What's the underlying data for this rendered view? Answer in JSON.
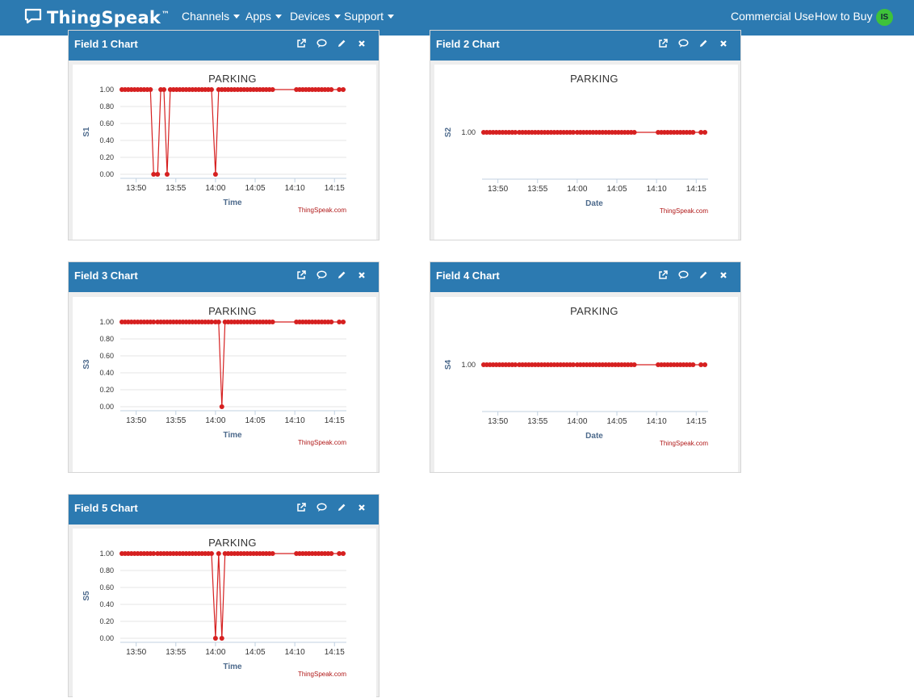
{
  "navbar": {
    "brand": "ThingSpeak",
    "brand_tm": "™",
    "menus": [
      {
        "label": "Channels"
      },
      {
        "label": "Apps"
      },
      {
        "label": "Devices"
      },
      {
        "label": "Support"
      }
    ],
    "commercial_use": "Commercial Use",
    "how_to_buy": "How to Buy",
    "avatar_initials": "IS"
  },
  "panels": [
    {
      "title": "Field 1 Chart"
    },
    {
      "title": "Field 2 Chart"
    },
    {
      "title": "Field 3 Chart"
    },
    {
      "title": "Field 4 Chart"
    },
    {
      "title": "Field 5 Chart"
    }
  ],
  "chart_data": [
    {
      "type": "line",
      "title": "PARKING",
      "xlabel": "Time",
      "ylabel": "S1",
      "credit": "ThingSpeak.com",
      "color": "#d62020",
      "x_ticks": [
        "13:50",
        "13:55",
        "14:00",
        "14:05",
        "14:10",
        "14:15"
      ],
      "y_ticks": [
        "1.00",
        "0.80",
        "0.60",
        "0.40",
        "0.20",
        "0.00"
      ],
      "xlim": [
        48,
        76.5
      ],
      "ylim": [
        0,
        1
      ],
      "x": [
        48.2,
        48.6,
        49.0,
        49.4,
        49.8,
        50.2,
        50.6,
        51.0,
        51.4,
        51.8,
        52.2,
        52.7,
        53.1,
        53.5,
        53.9,
        54.3,
        54.7,
        55.1,
        55.5,
        55.9,
        56.3,
        56.7,
        57.1,
        57.5,
        57.9,
        58.3,
        58.7,
        59.1,
        59.5,
        60.0,
        60.4,
        60.8,
        61.2,
        61.6,
        62.0,
        62.4,
        62.8,
        63.2,
        63.6,
        64.0,
        64.4,
        64.8,
        65.2,
        65.6,
        66.0,
        66.4,
        66.8,
        67.2,
        70.2,
        70.6,
        71.0,
        71.4,
        71.8,
        72.2,
        72.6,
        73.0,
        73.4,
        73.8,
        74.2,
        74.6,
        75.6,
        76.1
      ],
      "values": [
        1,
        1,
        1,
        1,
        1,
        1,
        1,
        1,
        1,
        1,
        0,
        0,
        1,
        1,
        0,
        1,
        1,
        1,
        1,
        1,
        1,
        1,
        1,
        1,
        1,
        1,
        1,
        1,
        1,
        0,
        1,
        1,
        1,
        1,
        1,
        1,
        1,
        1,
        1,
        1,
        1,
        1,
        1,
        1,
        1,
        1,
        1,
        1,
        1,
        1,
        1,
        1,
        1,
        1,
        1,
        1,
        1,
        1,
        1,
        1,
        1,
        1
      ]
    },
    {
      "type": "line",
      "title": "PARKING",
      "xlabel": "Date",
      "ylabel": "S2",
      "credit": "ThingSpeak.com",
      "color": "#d62020",
      "x_ticks": [
        "13:50",
        "13:55",
        "14:00",
        "14:05",
        "14:10",
        "14:15"
      ],
      "y_ticks": [
        "1.00"
      ],
      "xlim": [
        48,
        76.5
      ],
      "ylim": [
        0,
        1
      ],
      "x": [
        48.2,
        48.6,
        49.0,
        49.4,
        49.8,
        50.2,
        50.6,
        51.0,
        51.4,
        51.8,
        52.2,
        52.7,
        53.1,
        53.5,
        53.9,
        54.3,
        54.7,
        55.1,
        55.5,
        55.9,
        56.3,
        56.7,
        57.1,
        57.5,
        57.9,
        58.3,
        58.7,
        59.1,
        59.5,
        60.0,
        60.4,
        60.8,
        61.2,
        61.6,
        62.0,
        62.4,
        62.8,
        63.2,
        63.6,
        64.0,
        64.4,
        64.8,
        65.2,
        65.6,
        66.0,
        66.4,
        66.8,
        67.2,
        70.2,
        70.6,
        71.0,
        71.4,
        71.8,
        72.2,
        72.6,
        73.0,
        73.4,
        73.8,
        74.2,
        74.6,
        75.6,
        76.1
      ],
      "values": [
        1,
        1,
        1,
        1,
        1,
        1,
        1,
        1,
        1,
        1,
        1,
        1,
        1,
        1,
        1,
        1,
        1,
        1,
        1,
        1,
        1,
        1,
        1,
        1,
        1,
        1,
        1,
        1,
        1,
        1,
        1,
        1,
        1,
        1,
        1,
        1,
        1,
        1,
        1,
        1,
        1,
        1,
        1,
        1,
        1,
        1,
        1,
        1,
        1,
        1,
        1,
        1,
        1,
        1,
        1,
        1,
        1,
        1,
        1,
        1,
        1,
        1
      ]
    },
    {
      "type": "line",
      "title": "PARKING",
      "xlabel": "Time",
      "ylabel": "S3",
      "credit": "ThingSpeak.com",
      "color": "#d62020",
      "x_ticks": [
        "13:50",
        "13:55",
        "14:00",
        "14:05",
        "14:10",
        "14:15"
      ],
      "y_ticks": [
        "1.00",
        "0.80",
        "0.60",
        "0.40",
        "0.20",
        "0.00"
      ],
      "xlim": [
        48,
        76.5
      ],
      "ylim": [
        0,
        1
      ],
      "x": [
        48.2,
        48.6,
        49.0,
        49.4,
        49.8,
        50.2,
        50.6,
        51.0,
        51.4,
        51.8,
        52.2,
        52.7,
        53.1,
        53.5,
        53.9,
        54.3,
        54.7,
        55.1,
        55.5,
        55.9,
        56.3,
        56.7,
        57.1,
        57.5,
        57.9,
        58.3,
        58.7,
        59.1,
        59.5,
        60.0,
        60.4,
        60.8,
        61.2,
        61.6,
        62.0,
        62.4,
        62.8,
        63.2,
        63.6,
        64.0,
        64.4,
        64.8,
        65.2,
        65.6,
        66.0,
        66.4,
        66.8,
        67.2,
        70.2,
        70.6,
        71.0,
        71.4,
        71.8,
        72.2,
        72.6,
        73.0,
        73.4,
        73.8,
        74.2,
        74.6,
        75.6,
        76.1
      ],
      "values": [
        1,
        1,
        1,
        1,
        1,
        1,
        1,
        1,
        1,
        1,
        1,
        1,
        1,
        1,
        1,
        1,
        1,
        1,
        1,
        1,
        1,
        1,
        1,
        1,
        1,
        1,
        1,
        1,
        1,
        1,
        1,
        0,
        1,
        1,
        1,
        1,
        1,
        1,
        1,
        1,
        1,
        1,
        1,
        1,
        1,
        1,
        1,
        1,
        1,
        1,
        1,
        1,
        1,
        1,
        1,
        1,
        1,
        1,
        1,
        1,
        1,
        1
      ]
    },
    {
      "type": "line",
      "title": "PARKING",
      "xlabel": "Date",
      "ylabel": "S4",
      "credit": "ThingSpeak.com",
      "color": "#d62020",
      "x_ticks": [
        "13:50",
        "13:55",
        "14:00",
        "14:05",
        "14:10",
        "14:15"
      ],
      "y_ticks": [
        "1.00"
      ],
      "xlim": [
        48,
        76.5
      ],
      "ylim": [
        0,
        1
      ],
      "x": [
        48.2,
        48.6,
        49.0,
        49.4,
        49.8,
        50.2,
        50.6,
        51.0,
        51.4,
        51.8,
        52.2,
        52.7,
        53.1,
        53.5,
        53.9,
        54.3,
        54.7,
        55.1,
        55.5,
        55.9,
        56.3,
        56.7,
        57.1,
        57.5,
        57.9,
        58.3,
        58.7,
        59.1,
        59.5,
        60.0,
        60.4,
        60.8,
        61.2,
        61.6,
        62.0,
        62.4,
        62.8,
        63.2,
        63.6,
        64.0,
        64.4,
        64.8,
        65.2,
        65.6,
        66.0,
        66.4,
        66.8,
        67.2,
        70.2,
        70.6,
        71.0,
        71.4,
        71.8,
        72.2,
        72.6,
        73.0,
        73.4,
        73.8,
        74.2,
        74.6,
        75.6,
        76.1
      ],
      "values": [
        1,
        1,
        1,
        1,
        1,
        1,
        1,
        1,
        1,
        1,
        1,
        1,
        1,
        1,
        1,
        1,
        1,
        1,
        1,
        1,
        1,
        1,
        1,
        1,
        1,
        1,
        1,
        1,
        1,
        1,
        1,
        1,
        1,
        1,
        1,
        1,
        1,
        1,
        1,
        1,
        1,
        1,
        1,
        1,
        1,
        1,
        1,
        1,
        1,
        1,
        1,
        1,
        1,
        1,
        1,
        1,
        1,
        1,
        1,
        1,
        1,
        1
      ]
    },
    {
      "type": "line",
      "title": "PARKING",
      "xlabel": "Time",
      "ylabel": "S5",
      "credit": "ThingSpeak.com",
      "color": "#d62020",
      "x_ticks": [
        "13:50",
        "13:55",
        "14:00",
        "14:05",
        "14:10",
        "14:15"
      ],
      "y_ticks": [
        "1.00",
        "0.80",
        "0.60",
        "0.40",
        "0.20",
        "0.00"
      ],
      "xlim": [
        48,
        76.5
      ],
      "ylim": [
        0,
        1
      ],
      "x": [
        48.2,
        48.6,
        49.0,
        49.4,
        49.8,
        50.2,
        50.6,
        51.0,
        51.4,
        51.8,
        52.2,
        52.7,
        53.1,
        53.5,
        53.9,
        54.3,
        54.7,
        55.1,
        55.5,
        55.9,
        56.3,
        56.7,
        57.1,
        57.5,
        57.9,
        58.3,
        58.7,
        59.1,
        59.5,
        60.0,
        60.4,
        60.8,
        61.2,
        61.6,
        62.0,
        62.4,
        62.8,
        63.2,
        63.6,
        64.0,
        64.4,
        64.8,
        65.2,
        65.6,
        66.0,
        66.4,
        66.8,
        67.2,
        70.2,
        70.6,
        71.0,
        71.4,
        71.8,
        72.2,
        72.6,
        73.0,
        73.4,
        73.8,
        74.2,
        74.6,
        75.6,
        76.1
      ],
      "values": [
        1,
        1,
        1,
        1,
        1,
        1,
        1,
        1,
        1,
        1,
        1,
        1,
        1,
        1,
        1,
        1,
        1,
        1,
        1,
        1,
        1,
        1,
        1,
        1,
        1,
        1,
        1,
        1,
        1,
        0,
        1,
        0,
        1,
        1,
        1,
        1,
        1,
        1,
        1,
        1,
        1,
        1,
        1,
        1,
        1,
        1,
        1,
        1,
        1,
        1,
        1,
        1,
        1,
        1,
        1,
        1,
        1,
        1,
        1,
        1,
        1,
        1
      ]
    }
  ]
}
